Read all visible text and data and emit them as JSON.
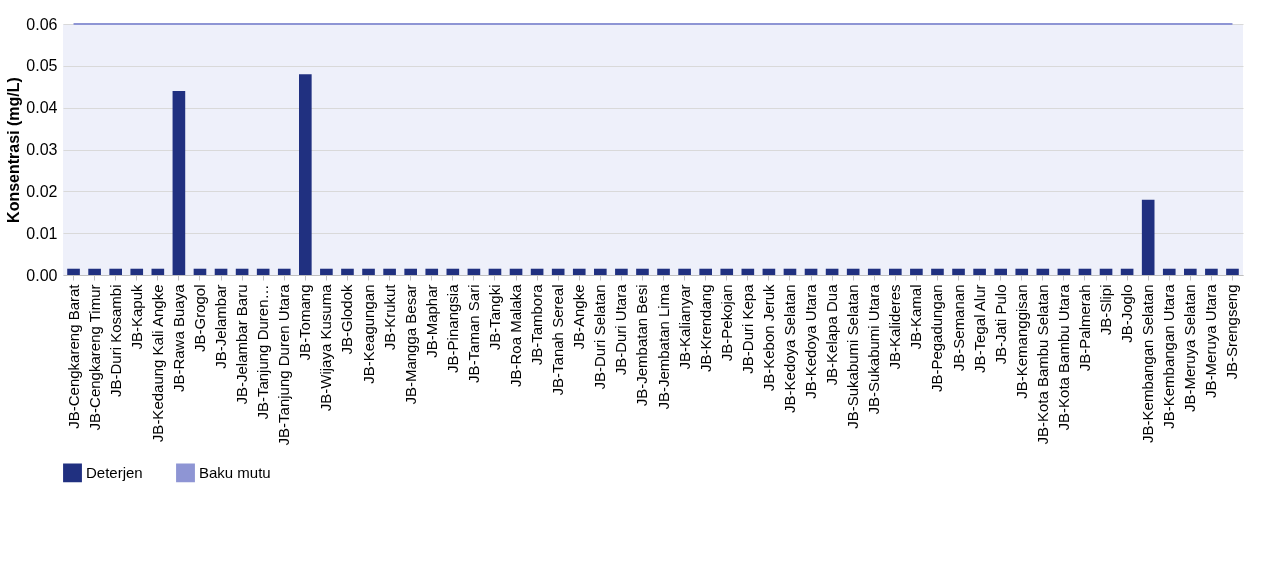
{
  "chart_data": {
    "type": "bar",
    "ylabel": "Konsentrasi (mg/L)",
    "categories": [
      "JB-Cengkareng Barat",
      "JB-Cengkareng Timur",
      "JB-Duri Kosambi",
      "JB-Kapuk",
      "JB-Kedaung Kali Angke",
      "JB-Rawa Buaya",
      "JB-Grogol",
      "JB-Jelambar",
      "JB-Jelambar Baru",
      "JB-Tanjung Duren…",
      "JB-Tanjung Duren Utara",
      "JB-Tomang",
      "JB-Wijaya Kusuma",
      "JB-Glodok",
      "JB-Keagungan",
      "JB-Krukut",
      "JB-Mangga Besar",
      "JB-Maphar",
      "JB-Pinangsia",
      "JB-Taman Sari",
      "JB-Tangki",
      "JB-Roa Malaka",
      "JB-Tambora",
      "JB-Tanah Sereal",
      "JB-Angke",
      "JB-Duri Selatan",
      "JB-Duri Utara",
      "JB-Jembatan Besi",
      "JB-Jembatan Lima",
      "JB-Kalianyar",
      "JB-Krendang",
      "JB-Pekojan",
      "JB-Duri Kepa",
      "JB-Kebon Jeruk",
      "JB-Kedoya Selatan",
      "JB-Kedoya Utara",
      "JB-Kelapa Dua",
      "JB-Sukabumi Selatan",
      "JB-Sukabumi Utara",
      "JB-Kalideres",
      "JB-Kamal",
      "JB-Pegadungan",
      "JB-Semanan",
      "JB-Tegal Alur",
      "JB-Jati Pulo",
      "JB-Kemanggisan",
      "JB-Kota Bambu Selatan",
      "JB-Kota Bambu Utara",
      "JB-Palmerah",
      "JB-Slipi",
      "JB-Joglo",
      "JB-Kembangan Selatan",
      "JB-Kembangan Utara",
      "JB-Meruya Selatan",
      "JB-Meruya Utara",
      "JB-Srengseng"
    ],
    "series": [
      {
        "name": "Deterjen",
        "color": "#203080",
        "values": [
          0.0015,
          0.0015,
          0.0015,
          0.0015,
          0.0015,
          0.044,
          0.0015,
          0.0015,
          0.0015,
          0.0015,
          0.0015,
          0.048,
          0.0015,
          0.0015,
          0.0015,
          0.0015,
          0.0015,
          0.0015,
          0.0015,
          0.0015,
          0.0015,
          0.0015,
          0.0015,
          0.0015,
          0.0015,
          0.0015,
          0.0015,
          0.0015,
          0.0015,
          0.0015,
          0.0015,
          0.0015,
          0.0015,
          0.0015,
          0.0015,
          0.0015,
          0.0015,
          0.0015,
          0.0015,
          0.0015,
          0.0015,
          0.0015,
          0.0015,
          0.0015,
          0.0015,
          0.0015,
          0.0015,
          0.0015,
          0.0015,
          0.0015,
          0.0015,
          0.018,
          0.0015,
          0.0015,
          0.0015,
          0.0015
        ]
      },
      {
        "name": "Baku mutu",
        "type": "line",
        "color": "#8e95d4",
        "values": [
          0.06,
          0.06,
          0.06,
          0.06,
          0.06,
          0.06,
          0.06,
          0.06,
          0.06,
          0.06,
          0.06,
          0.06,
          0.06,
          0.06,
          0.06,
          0.06,
          0.06,
          0.06,
          0.06,
          0.06,
          0.06,
          0.06,
          0.06,
          0.06,
          0.06,
          0.06,
          0.06,
          0.06,
          0.06,
          0.06,
          0.06,
          0.06,
          0.06,
          0.06,
          0.06,
          0.06,
          0.06,
          0.06,
          0.06,
          0.06,
          0.06,
          0.06,
          0.06,
          0.06,
          0.06,
          0.06,
          0.06,
          0.06,
          0.06,
          0.06,
          0.06,
          0.06,
          0.06,
          0.06,
          0.06,
          0.06
        ]
      }
    ],
    "ylim": [
      0,
      0.06
    ],
    "yticks": [
      {
        "value": 0,
        "label": "0.00"
      },
      {
        "value": 0.01,
        "label": "0.01"
      },
      {
        "value": 0.02,
        "label": "0.02"
      },
      {
        "value": 0.03,
        "label": "0.03"
      },
      {
        "value": 0.04,
        "label": "0.04"
      },
      {
        "value": 0.05,
        "label": "0.05"
      },
      {
        "value": 0.06,
        "label": "0.06"
      }
    ],
    "grid": "y",
    "legend": "bottom"
  }
}
